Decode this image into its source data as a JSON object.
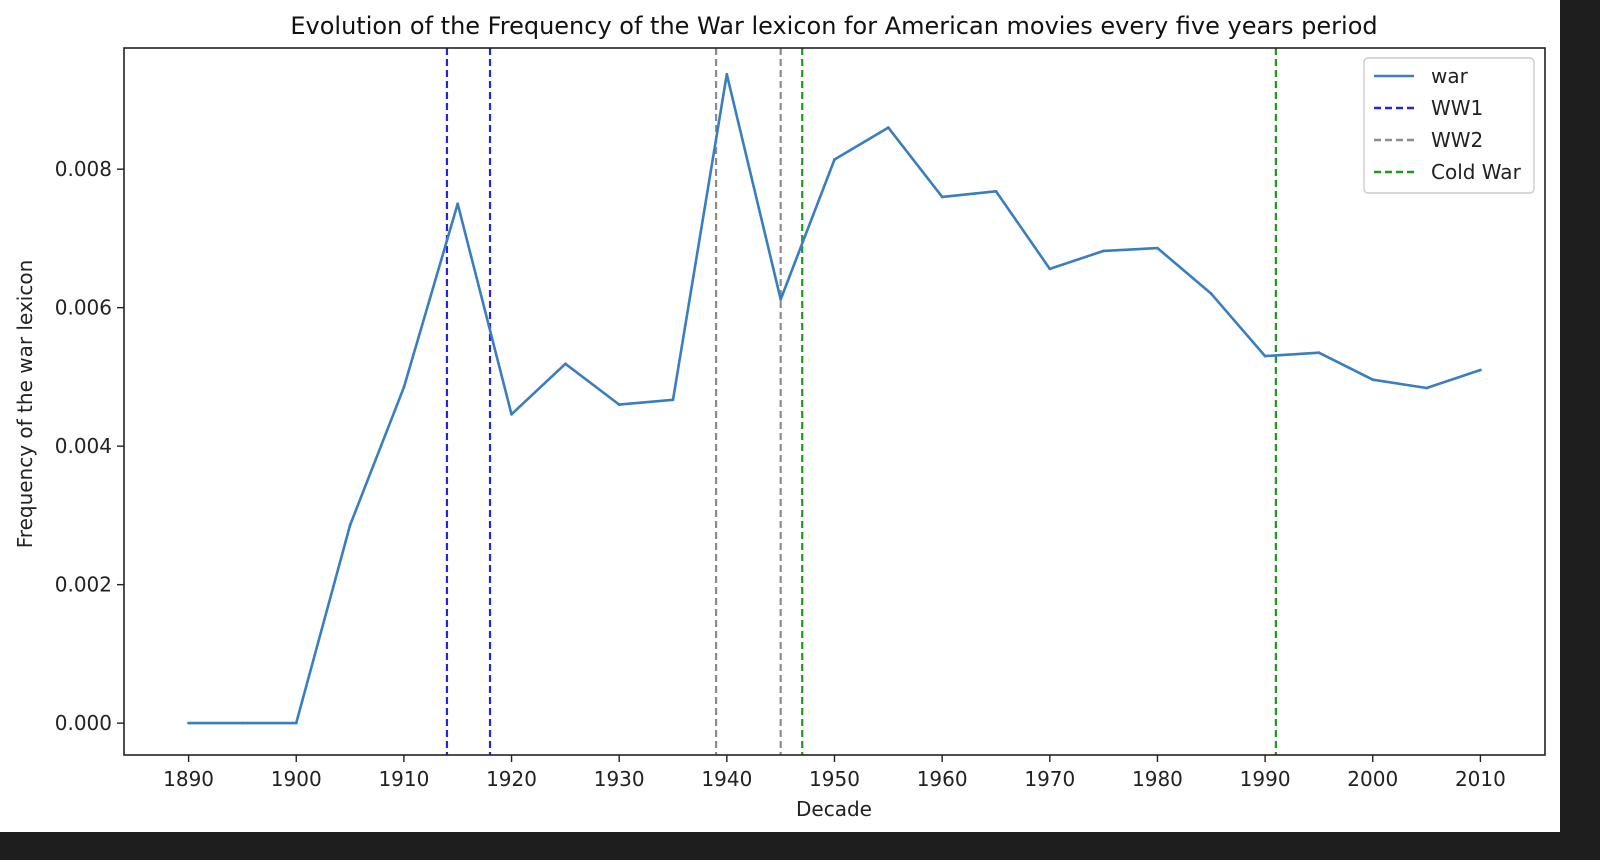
{
  "colors": {
    "war": "#3a7ebf",
    "ww1": "#2525e0",
    "ww2": "#8c8c8c",
    "cold_war": "#1f9a1f",
    "background": "#ffffff",
    "frame": "#1e1e1e"
  },
  "chart_data": {
    "type": "line",
    "title": "Evolution of the Frequency of the War lexicon for American movies every five years period",
    "xlabel": "Decade",
    "ylabel": "Frequency of the war lexicon",
    "xlim": [
      1884,
      2016
    ],
    "ylim": [
      -0.00046,
      0.00975
    ],
    "x_ticks": [
      1890,
      1900,
      1910,
      1920,
      1930,
      1940,
      1950,
      1960,
      1970,
      1980,
      1990,
      2000,
      2010
    ],
    "y_ticks": [
      0.0,
      0.002,
      0.004,
      0.006,
      0.008
    ],
    "y_tick_labels": [
      "0.000",
      "0.002",
      "0.004",
      "0.006",
      "0.008"
    ],
    "grid": false,
    "legend_position": "top-right",
    "series": [
      {
        "name": "war",
        "style": "solid",
        "x": [
          1890,
          1895,
          1900,
          1905,
          1910,
          1915,
          1920,
          1925,
          1930,
          1935,
          1940,
          1945,
          1950,
          1955,
          1960,
          1965,
          1970,
          1975,
          1980,
          1985,
          1990,
          1995,
          2000,
          2005,
          2010
        ],
        "values": [
          0.0,
          0.0,
          0.0,
          0.00286,
          0.00485,
          0.0075,
          0.00446,
          0.00519,
          0.0046,
          0.00467,
          0.00937,
          0.00612,
          0.00814,
          0.0086,
          0.0076,
          0.00768,
          0.00656,
          0.00682,
          0.00686,
          0.0062,
          0.0053,
          0.00535,
          0.00496,
          0.00484,
          0.0051
        ]
      }
    ],
    "reference_lines": [
      {
        "name": "WW1",
        "style": "dashed",
        "x": [
          1914,
          1918
        ]
      },
      {
        "name": "WW2",
        "style": "dashed",
        "x": [
          1939,
          1945
        ]
      },
      {
        "name": "Cold War",
        "style": "dashed",
        "x": [
          1947,
          1991
        ]
      }
    ]
  }
}
